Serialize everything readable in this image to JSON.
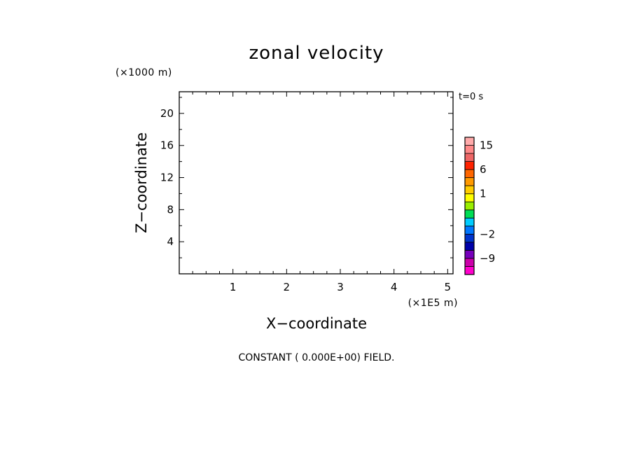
{
  "chart_data": {
    "type": "heatmap",
    "title": "zonal velocity",
    "xlabel": "X−coordinate",
    "ylabel": "Z−coordinate",
    "x_unit": "(×1E5 m)",
    "y_unit": "(×1000 m)",
    "xlim": [
      0,
      5.1
    ],
    "ylim": [
      0,
      22.7
    ],
    "x_ticks": [
      1,
      2,
      3,
      4,
      5
    ],
    "y_ticks": [
      4,
      8,
      12,
      16,
      20
    ],
    "x_tick_labels": [
      "1",
      "2",
      "3",
      "4",
      "5"
    ],
    "y_tick_labels": [
      "4",
      "8",
      "12",
      "16",
      "20"
    ],
    "time_label": "t=0 s",
    "field_note": "CONSTANT ( 0.000E+00) FIELD.",
    "field_value": 0,
    "colorbar": {
      "levels": [
        -15,
        -12,
        -9,
        -6,
        -4,
        -2,
        -1,
        -0.5,
        0,
        0.5,
        1,
        2,
        4,
        6,
        9,
        12,
        15,
        18
      ],
      "colors": [
        "#ff00cc",
        "#cc00aa",
        "#7700bb",
        "#0000aa",
        "#0033cc",
        "#0077ff",
        "#00ccff",
        "#00dd55",
        "#99ee00",
        "#ffff00",
        "#ffcc00",
        "#ff9900",
        "#ff6600",
        "#ff2200",
        "#ee6666",
        "#ff8888",
        "#ffaaaa"
      ],
      "tick_labels": [
        {
          "value": 15,
          "label": "15"
        },
        {
          "value": 6,
          "label": "6"
        },
        {
          "value": 1,
          "label": "1"
        },
        {
          "value": -2,
          "label": "−2"
        },
        {
          "value": -9,
          "label": "−9"
        }
      ]
    }
  }
}
